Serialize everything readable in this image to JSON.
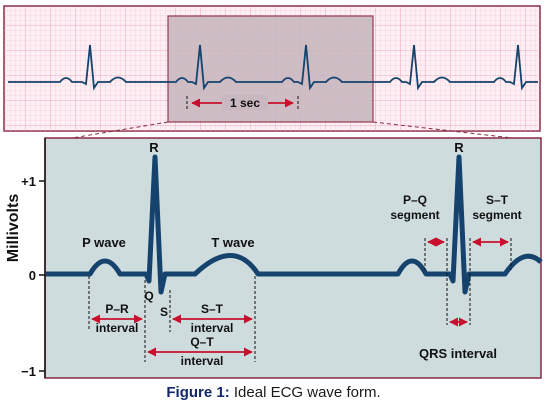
{
  "strip": {
    "interval_label": "1 sec"
  },
  "main": {
    "y_axis_label": "Millivolts",
    "y_ticks": [
      "+1",
      "0",
      "−1"
    ],
    "labels": {
      "r_peak_1": "R",
      "r_peak_2": "R",
      "p_wave": "P wave",
      "t_wave": "T wave",
      "q": "Q",
      "s": "S",
      "pr_line1": "P–R",
      "pr_line2": "interval",
      "st_int_line1": "S–T",
      "st_int_line2": "interval",
      "qt_line1": "Q–T",
      "qt_line2": "interval",
      "pq_seg_line1": "P–Q",
      "pq_seg_line2": "segment",
      "st_seg_line1": "S–T",
      "st_seg_line2": "segment",
      "qrs_interval": "QRS interval"
    }
  },
  "caption": {
    "prefix": "Figure 1:",
    "text": " Ideal ECG wave form."
  },
  "colors": {
    "strip_background": "#fdeff3",
    "strip_grid": "#f0b3c4",
    "strip_border": "#8a2a44",
    "highlight_box": "#c9b8bf",
    "panel_background": "#cfdcdd",
    "panel_border": "#8a2a44",
    "trace": "#15436e",
    "marker_red": "#c8102e",
    "caption_prefix": "#12286b"
  }
}
